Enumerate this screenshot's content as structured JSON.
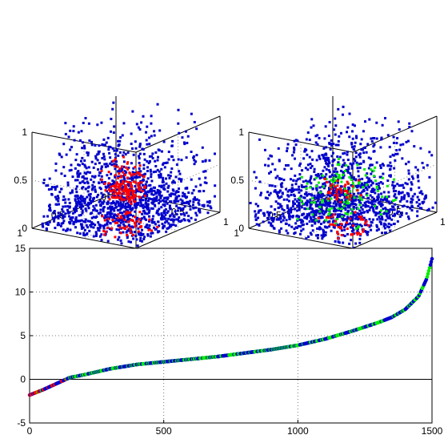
{
  "chart_data": [
    {
      "type": "scatter",
      "projection": "3d",
      "title": "",
      "xlim": [
        0,
        1
      ],
      "ylim": [
        0,
        1
      ],
      "zlim": [
        0,
        1
      ],
      "x_ticks": [
        "0",
        "0.5",
        "1"
      ],
      "y_ticks": [
        "0",
        "0.5",
        "1"
      ],
      "z_ticks": [
        "0",
        "0.5",
        "1"
      ],
      "grid": true,
      "series": [
        {
          "color": "#0000cc",
          "marker": "dot",
          "approx_count": 1300
        },
        {
          "color": "#ff0000",
          "marker": "dot",
          "approx_count": 200
        }
      ]
    },
    {
      "type": "scatter",
      "projection": "3d",
      "title": "",
      "xlim": [
        0,
        1
      ],
      "ylim": [
        0,
        1
      ],
      "zlim": [
        0,
        1
      ],
      "x_ticks": [
        "0",
        "0.5",
        "1"
      ],
      "y_ticks": [
        "0",
        "0.5",
        "1"
      ],
      "z_ticks": [
        "0",
        "0.5",
        "1"
      ],
      "grid": true,
      "series": [
        {
          "color": "#0000cc",
          "marker": "dot",
          "approx_count": 1300
        },
        {
          "color": "#00ee00",
          "marker": "dot",
          "approx_count": 120
        },
        {
          "color": "#ff0000",
          "marker": "dot",
          "approx_count": 80
        }
      ]
    },
    {
      "type": "line",
      "title": "",
      "xlabel": "",
      "ylabel": "",
      "xlim": [
        0,
        1500
      ],
      "ylim": [
        -5,
        15
      ],
      "x_ticks": [
        "0",
        "500",
        "1000",
        "1500"
      ],
      "y_ticks": [
        "-5",
        "0",
        "5",
        "10",
        "15"
      ],
      "grid": true,
      "reference_line_y": 0,
      "curve": {
        "x": [
          0,
          50,
          100,
          150,
          200,
          300,
          400,
          500,
          600,
          700,
          800,
          900,
          1000,
          1100,
          1200,
          1300,
          1350,
          1400,
          1450,
          1480,
          1500
        ],
        "y": [
          -1.8,
          -1.2,
          -0.5,
          0.2,
          0.5,
          1.2,
          1.7,
          2.0,
          2.3,
          2.6,
          3.0,
          3.4,
          3.9,
          4.6,
          5.5,
          6.5,
          7.1,
          8.0,
          9.5,
          11.5,
          13.8
        ]
      },
      "point_colors": [
        "#0000cc",
        "#00ee00",
        "#ff0000"
      ]
    }
  ]
}
